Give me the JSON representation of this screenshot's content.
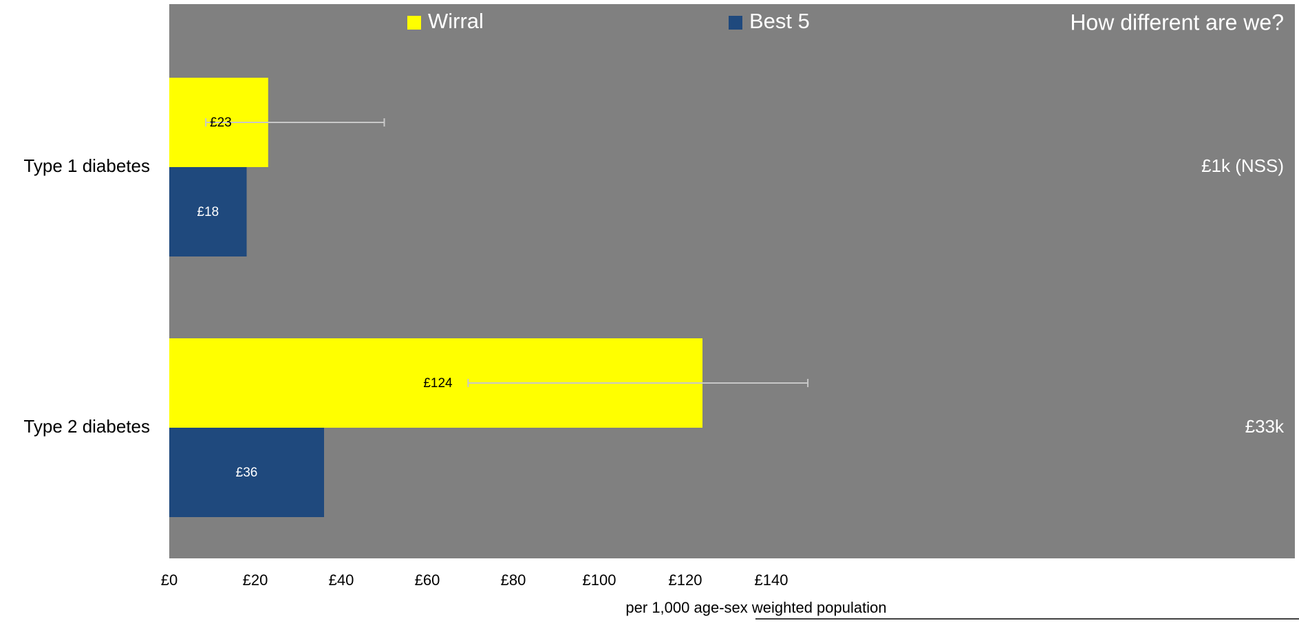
{
  "chart_data": {
    "type": "bar",
    "orientation": "horizontal",
    "categories": [
      "Type 1 diabetes",
      "Type 2 diabetes"
    ],
    "series": [
      {
        "name": "Wirral",
        "color": "#FFFF00",
        "values": [
          23,
          124
        ],
        "data_labels": [
          "£23",
          "£124"
        ],
        "label_color": "#000000",
        "error_bars": [
          [
            8.5,
            50
          ],
          [
            69.5,
            148.5
          ]
        ]
      },
      {
        "name": "Best 5",
        "color": "#1F497D",
        "values": [
          18,
          36
        ],
        "data_labels": [
          "£18",
          "£36"
        ],
        "label_color": "#FFFFFF"
      }
    ],
    "xlim": [
      0,
      150
    ],
    "x_ticks": [
      0,
      20,
      40,
      60,
      80,
      100,
      120,
      140
    ],
    "x_tick_labels": [
      "£0",
      "£20",
      "£40",
      "£60",
      "£80",
      "£100",
      "£120",
      "£140"
    ],
    "xlabel": "per 1,000 age-sex weighted population",
    "ylabel": "",
    "title": "",
    "legend_position": "top",
    "background_color": "#808080",
    "grid": false,
    "side_panel": {
      "title": "How different are we?",
      "values": [
        "£1k (NSS)",
        "£33k"
      ]
    }
  }
}
